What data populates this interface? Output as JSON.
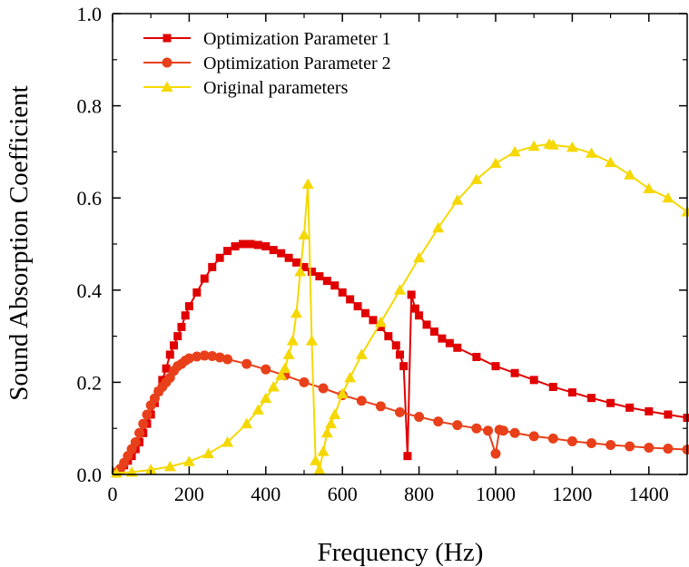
{
  "chart_data": {
    "type": "line",
    "title": "",
    "xlabel": "Frequency (Hz)",
    "ylabel": "Sound Absorption Coefficient",
    "xlim": [
      0,
      1500
    ],
    "ylim": [
      0,
      1.0
    ],
    "xticks": [
      0,
      200,
      400,
      600,
      800,
      1000,
      1200,
      1400
    ],
    "yticks": [
      0.0,
      0.2,
      0.4,
      0.6,
      0.8,
      1.0
    ],
    "xtick_labels": [
      "0",
      "200",
      "400",
      "600",
      "800",
      "1000",
      "1200",
      "1400"
    ],
    "ytick_labels": [
      "0.0",
      "0.2",
      "0.4",
      "0.6",
      "0.8",
      "1.0"
    ],
    "legend_position": "top-left",
    "series": [
      {
        "name": "Optimization Parameter 1",
        "color": "#e00000",
        "marker": "square",
        "x": [
          10,
          20,
          30,
          40,
          50,
          60,
          70,
          80,
          90,
          100,
          110,
          120,
          130,
          140,
          150,
          160,
          170,
          180,
          190,
          200,
          220,
          240,
          260,
          280,
          300,
          320,
          340,
          360,
          380,
          400,
          420,
          440,
          460,
          480,
          500,
          520,
          540,
          560,
          580,
          600,
          620,
          640,
          660,
          680,
          700,
          720,
          740,
          750,
          760,
          770,
          780,
          790,
          800,
          820,
          840,
          860,
          880,
          900,
          950,
          1000,
          1050,
          1100,
          1150,
          1200,
          1250,
          1300,
          1350,
          1400,
          1450,
          1500
        ],
        "y": [
          0.005,
          0.01,
          0.02,
          0.03,
          0.04,
          0.055,
          0.07,
          0.09,
          0.11,
          0.13,
          0.155,
          0.18,
          0.205,
          0.23,
          0.26,
          0.28,
          0.3,
          0.32,
          0.345,
          0.365,
          0.395,
          0.425,
          0.45,
          0.47,
          0.485,
          0.495,
          0.5,
          0.5,
          0.498,
          0.495,
          0.487,
          0.48,
          0.47,
          0.46,
          0.45,
          0.44,
          0.43,
          0.42,
          0.41,
          0.395,
          0.38,
          0.365,
          0.35,
          0.335,
          0.32,
          0.3,
          0.28,
          0.26,
          0.235,
          0.04,
          0.39,
          0.36,
          0.345,
          0.325,
          0.31,
          0.295,
          0.285,
          0.275,
          0.255,
          0.235,
          0.22,
          0.205,
          0.19,
          0.178,
          0.166,
          0.155,
          0.145,
          0.137,
          0.13,
          0.123
        ]
      },
      {
        "name": "Optimization Parameter 2",
        "color": "#e8401a",
        "marker": "circle",
        "x": [
          10,
          20,
          30,
          40,
          50,
          60,
          70,
          80,
          90,
          100,
          110,
          120,
          130,
          140,
          150,
          160,
          170,
          180,
          190,
          200,
          220,
          240,
          260,
          280,
          300,
          350,
          400,
          450,
          500,
          550,
          600,
          650,
          700,
          750,
          800,
          850,
          900,
          950,
          980,
          1000,
          1010,
          1020,
          1050,
          1100,
          1150,
          1200,
          1250,
          1300,
          1350,
          1400,
          1450,
          1500
        ],
        "y": [
          0.005,
          0.012,
          0.025,
          0.04,
          0.055,
          0.07,
          0.09,
          0.11,
          0.13,
          0.15,
          0.165,
          0.18,
          0.19,
          0.2,
          0.21,
          0.225,
          0.235,
          0.24,
          0.247,
          0.252,
          0.256,
          0.258,
          0.257,
          0.254,
          0.25,
          0.24,
          0.228,
          0.215,
          0.2,
          0.187,
          0.172,
          0.16,
          0.148,
          0.135,
          0.125,
          0.115,
          0.107,
          0.1,
          0.095,
          0.045,
          0.097,
          0.095,
          0.09,
          0.083,
          0.078,
          0.072,
          0.068,
          0.064,
          0.061,
          0.058,
          0.056,
          0.054
        ]
      },
      {
        "name": "Original parameters",
        "color": "#f5d800",
        "marker": "triangle",
        "x": [
          10,
          50,
          100,
          150,
          200,
          250,
          300,
          350,
          380,
          400,
          420,
          440,
          450,
          460,
          470,
          480,
          490,
          500,
          510,
          520,
          530,
          540,
          550,
          560,
          570,
          580,
          600,
          620,
          650,
          700,
          750,
          800,
          850,
          900,
          950,
          1000,
          1050,
          1100,
          1140,
          1150,
          1200,
          1250,
          1300,
          1350,
          1400,
          1450,
          1500
        ],
        "y": [
          0.003,
          0.005,
          0.01,
          0.017,
          0.028,
          0.045,
          0.07,
          0.11,
          0.14,
          0.165,
          0.19,
          0.215,
          0.23,
          0.26,
          0.29,
          0.35,
          0.44,
          0.52,
          0.63,
          0.29,
          0.03,
          0.01,
          0.05,
          0.09,
          0.11,
          0.13,
          0.175,
          0.21,
          0.26,
          0.33,
          0.4,
          0.47,
          0.535,
          0.595,
          0.64,
          0.675,
          0.7,
          0.712,
          0.717,
          0.715,
          0.71,
          0.697,
          0.677,
          0.65,
          0.62,
          0.6,
          0.57
        ]
      }
    ]
  }
}
